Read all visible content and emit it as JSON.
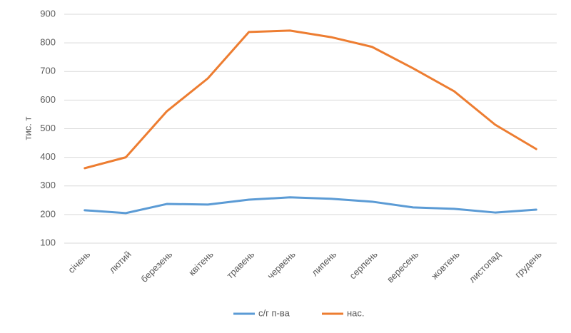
{
  "chart_data": {
    "type": "line",
    "y_label": "тис. т",
    "categories": [
      "січень",
      "лютий",
      "березень",
      "квітень",
      "травень",
      "червень",
      "липень",
      "серпень",
      "вересень",
      "жовтень",
      "листопад",
      "грудень"
    ],
    "series": [
      {
        "name": "с/г п-ва",
        "color": "#5b9bd5",
        "values": [
          215,
          205,
          237,
          235,
          252,
          260,
          255,
          245,
          225,
          220,
          207,
          217
        ]
      },
      {
        "name": "нас.",
        "color": "#ed7d31",
        "values": [
          362,
          400,
          561,
          676,
          838,
          843,
          820,
          786,
          711,
          631,
          514,
          429
        ]
      }
    ],
    "ylim": [
      100,
      900
    ],
    "yticks": [
      100,
      200,
      300,
      400,
      500,
      600,
      700,
      800,
      900
    ],
    "grid": true,
    "legend": "bottom"
  }
}
